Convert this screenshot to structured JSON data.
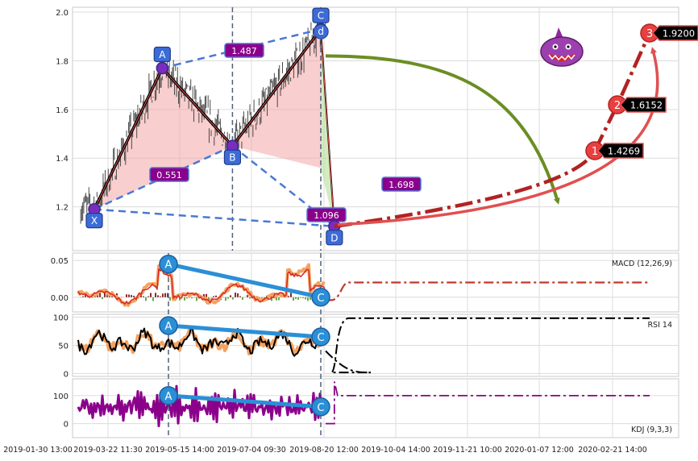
{
  "chart_data": [
    {
      "panel": "price",
      "type": "line",
      "ylim": [
        1.02,
        2.02
      ],
      "yticks": [
        "1.2",
        "1.4",
        "1.6",
        "1.8",
        "2.0"
      ],
      "xticks": [
        "2019-01-30 13:00",
        "2019-03-22 11:30",
        "2019-05-15 14:00",
        "2019-07-04 09:30",
        "2019-08-20 12:00",
        "2019-10-04 14:00",
        "2019-11-21 10:00",
        "2020-01-07 12:00",
        "2020-02-21 14:00"
      ],
      "grid": true,
      "pattern_points": [
        {
          "label": "X",
          "t": 0.0,
          "value": 1.19
        },
        {
          "label": "A",
          "t": 0.3,
          "value": 1.77
        },
        {
          "label": "B",
          "t": 0.61,
          "value": 1.45
        },
        {
          "label": "C",
          "t": 1.0,
          "value": 1.93
        },
        {
          "label": "D",
          "t": 1.06,
          "value": 1.12
        }
      ],
      "d_point": {
        "label": "d",
        "t": 0.99,
        "value": 1.92
      },
      "ratios": [
        {
          "value": "0.551",
          "from": "X",
          "to": "B"
        },
        {
          "value": "1.487",
          "from": "A",
          "to": "C"
        },
        {
          "value": "1.698",
          "from": "B",
          "to": "D"
        },
        {
          "value": "1.096",
          "from": "X",
          "to": "D"
        }
      ],
      "targets": [
        {
          "label": "1",
          "value": "1.4269"
        },
        {
          "label": "2",
          "value": "1.6152"
        },
        {
          "label": "3",
          "value": "1.9200"
        }
      ]
    },
    {
      "panel": "macd",
      "type": "line",
      "label": "MACD (12,26,9)",
      "ylim": [
        -0.02,
        0.06
      ],
      "yticks": [
        "0.00",
        "0.05"
      ],
      "divergence": {
        "A": 0.045,
        "C": 0.0
      }
    },
    {
      "panel": "rsi",
      "type": "line",
      "label": "RSI 14",
      "ylim": [
        -5,
        105
      ],
      "yticks": [
        "0",
        "50",
        "100"
      ],
      "divergence": {
        "A": 85,
        "C": 65
      }
    },
    {
      "panel": "kdj",
      "type": "line",
      "label": "KDJ (9,3,3)",
      "ylim": [
        -50,
        160
      ],
      "yticks": [
        "0",
        "100"
      ],
      "divergence": {
        "A": 100,
        "C": 60
      }
    }
  ]
}
